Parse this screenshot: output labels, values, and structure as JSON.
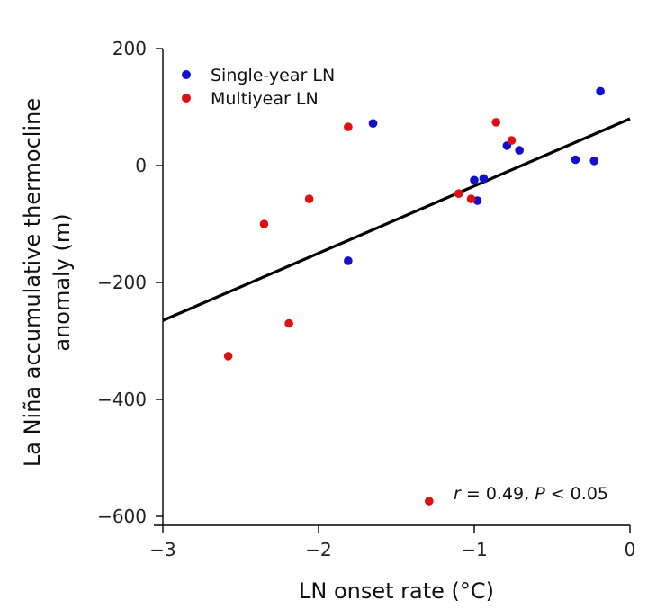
{
  "chart_data": {
    "type": "scatter",
    "xlabel": "LN onset rate (°C)",
    "ylabel_line1": "La Niña accumulative thermocline",
    "ylabel_line2": "anomaly (m)",
    "xlim": [
      -3,
      0
    ],
    "ylim": [
      -600,
      200
    ],
    "xticks": [
      -3,
      -2,
      -1,
      0
    ],
    "yticks": [
      200,
      0,
      -200,
      -400,
      -600
    ],
    "xtick_labels": [
      "−3",
      "−2",
      "−1",
      "0"
    ],
    "ytick_labels": [
      "200",
      "0",
      "−200",
      "−400",
      "−600"
    ],
    "series": [
      {
        "name": "Single-year LN",
        "color": "#1010d0",
        "points": [
          [
            -1.65,
            72
          ],
          [
            -1.81,
            -163
          ],
          [
            -1.0,
            -25
          ],
          [
            -0.98,
            -60
          ],
          [
            -0.94,
            -22
          ],
          [
            -0.79,
            34
          ],
          [
            -0.71,
            26
          ],
          [
            -0.35,
            10
          ],
          [
            -0.23,
            8
          ],
          [
            -0.19,
            127
          ]
        ]
      },
      {
        "name": "Multiyear LN",
        "color": "#e01010",
        "points": [
          [
            -2.58,
            -326
          ],
          [
            -2.35,
            -100
          ],
          [
            -2.19,
            -270
          ],
          [
            -2.06,
            -57
          ],
          [
            -1.81,
            66
          ],
          [
            -1.29,
            -574
          ],
          [
            -1.1,
            -48
          ],
          [
            -1.02,
            -57
          ],
          [
            -0.86,
            74
          ],
          [
            -0.76,
            43
          ]
        ]
      }
    ],
    "fit_line": {
      "x": [
        -3,
        0
      ],
      "y": [
        -265,
        80
      ],
      "color": "#000000"
    },
    "annotation": {
      "r_label": "r",
      "r_value": " = 0.49, ",
      "p_label": "P",
      "p_value": " < 0.05"
    },
    "legend_position": "top-left"
  }
}
